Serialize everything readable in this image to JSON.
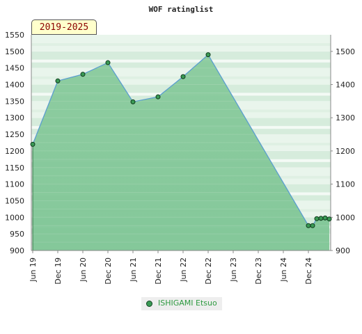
{
  "chart_data": {
    "type": "area",
    "title": "WOF ratinglist",
    "period_label": "2019-2025",
    "ylim": [
      900,
      1550
    ],
    "y_ticks_left": [
      900,
      950,
      1000,
      1050,
      1100,
      1150,
      1200,
      1250,
      1300,
      1350,
      1400,
      1450,
      1500,
      1550
    ],
    "y_ticks_right": [
      900,
      1000,
      1100,
      1200,
      1300,
      1400,
      1500
    ],
    "x_ticks": [
      "Jun 19",
      "Dec 19",
      "Jun 20",
      "Dec 20",
      "Jun 21",
      "Dec 21",
      "Jun 22",
      "Dec 22",
      "Jun 23",
      "Dec 23",
      "Jun 24",
      "Dec 24"
    ],
    "series": [
      {
        "name": "ISHIGAMI Etsuo",
        "color": "#3a9a55",
        "points": [
          {
            "x": "2019-06",
            "y": 1220
          },
          {
            "x": "2019-12",
            "y": 1411
          },
          {
            "x": "2020-06",
            "y": 1431
          },
          {
            "x": "2020-12",
            "y": 1466
          },
          {
            "x": "2021-06",
            "y": 1348
          },
          {
            "x": "2021-12",
            "y": 1363
          },
          {
            "x": "2022-06",
            "y": 1424
          },
          {
            "x": "2022-12",
            "y": 1490
          },
          {
            "x": "2024-12",
            "y": 975
          },
          {
            "x": "2025-01",
            "y": 975
          },
          {
            "x": "2025-02",
            "y": 996
          },
          {
            "x": "2025-03",
            "y": 997
          },
          {
            "x": "2025-04",
            "y": 998
          },
          {
            "x": "2025-05",
            "y": 995
          }
        ]
      }
    ],
    "legend_position": "bottom-center"
  }
}
